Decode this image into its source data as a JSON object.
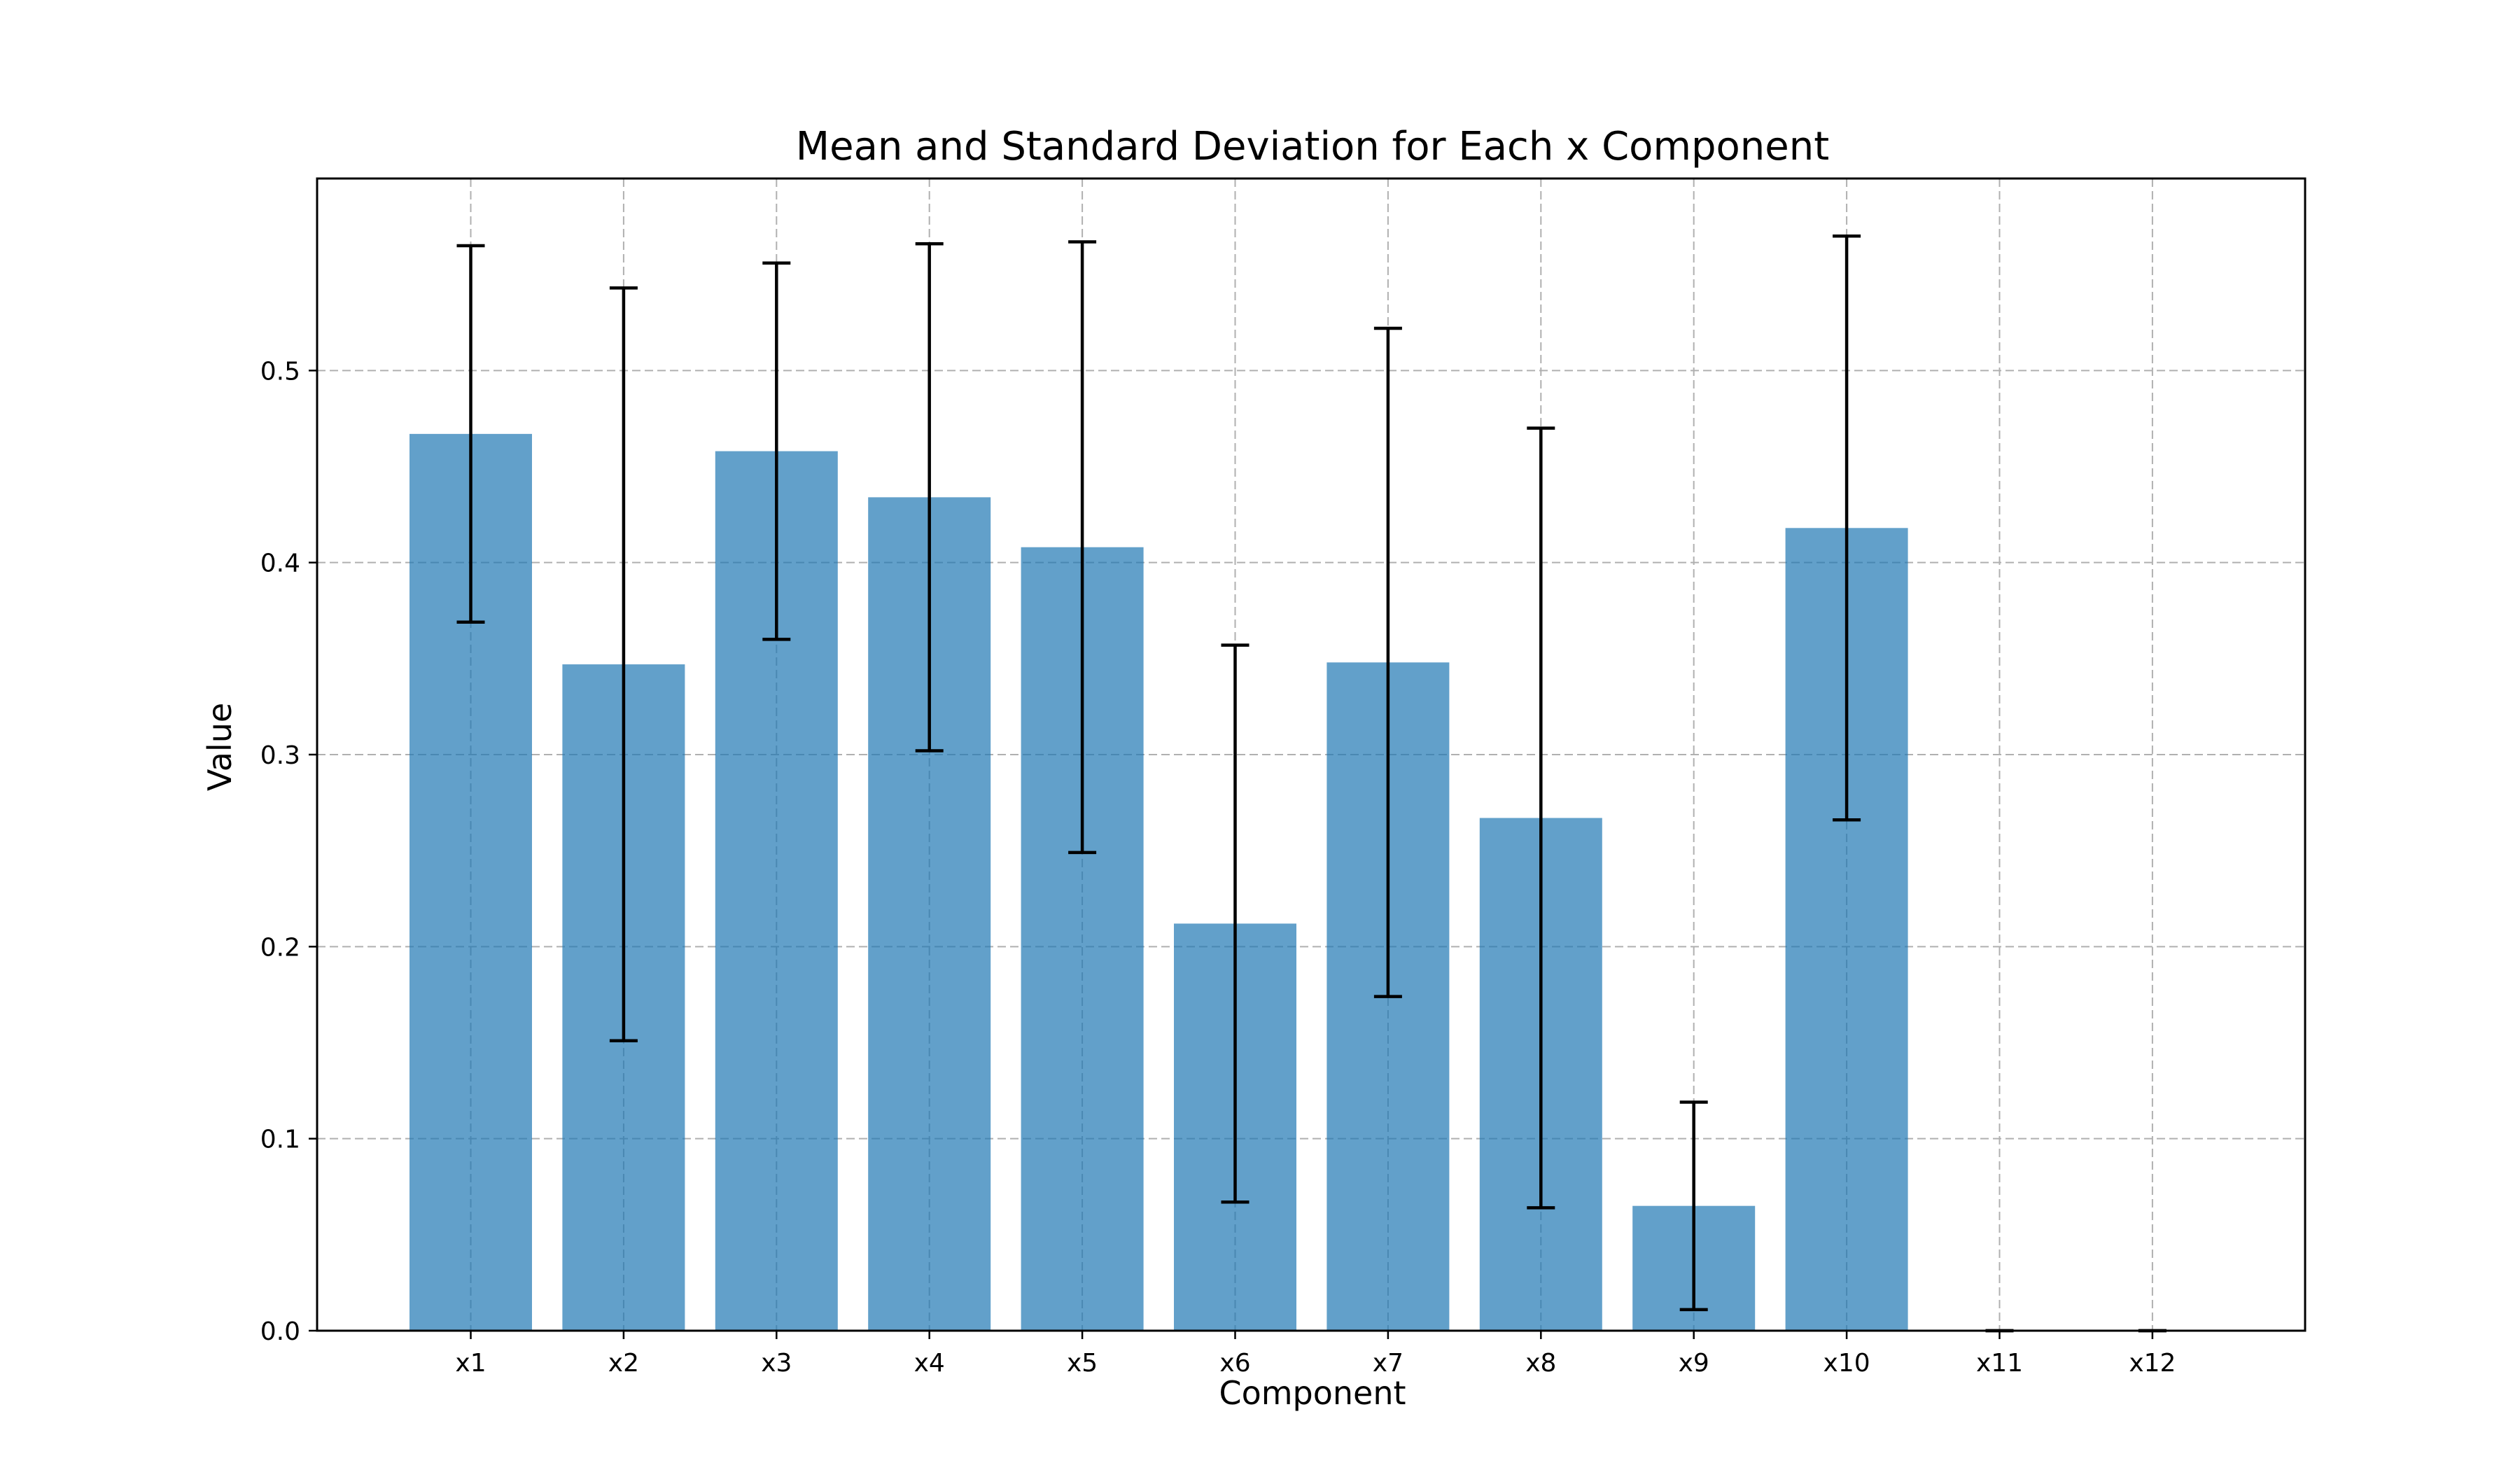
{
  "chart_data": {
    "type": "bar",
    "title": "Mean and Standard Deviation for Each x Component",
    "xlabel": "Component",
    "ylabel": "Value",
    "categories": [
      "x1",
      "x2",
      "x3",
      "x4",
      "x5",
      "x6",
      "x7",
      "x8",
      "x9",
      "x10",
      "x11",
      "x12"
    ],
    "series": [
      {
        "values": [
          0.467,
          0.347,
          0.458,
          0.434,
          0.408,
          0.212,
          0.348,
          0.267,
          0.065,
          0.418,
          0.0,
          0.0
        ],
        "errors": [
          0.098,
          0.196,
          0.098,
          0.132,
          0.159,
          0.145,
          0.174,
          0.203,
          0.054,
          0.152,
          0.0,
          0.0
        ]
      }
    ],
    "ylim": [
      0,
      0.6
    ],
    "yticks": [
      "0.0",
      "0.1",
      "0.2",
      "0.3",
      "0.4",
      "0.5"
    ],
    "grid": true,
    "bar_color": "#1f77b4",
    "bar_alpha": 0.7,
    "error_color": "#000000"
  }
}
